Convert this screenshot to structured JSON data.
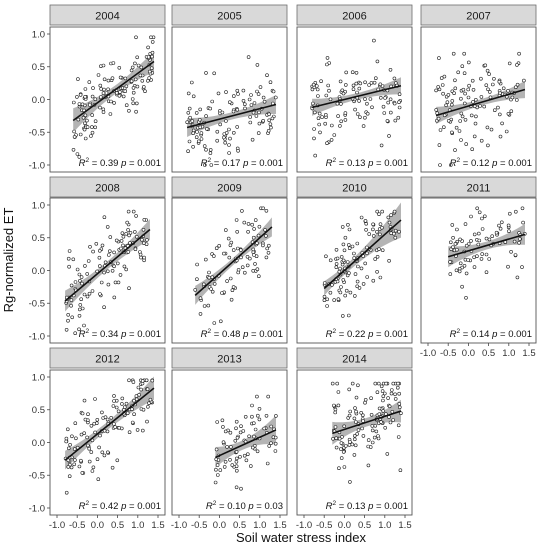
{
  "chart_data": {
    "type": "scatter",
    "xlabel": "Soil water stress index",
    "ylabel": "Rg-normalized ET",
    "xlim": [
      -1.0,
      1.5
    ],
    "ylim": [
      -1.0,
      1.0
    ],
    "x_ticks": [
      "-1.0",
      "-0.5",
      "0.0",
      "0.5",
      "1.0",
      "1.5"
    ],
    "y_ticks": [
      "-1.0",
      "-0.5",
      "0.0",
      "0.5",
      "1.0"
    ],
    "grid": false,
    "colors": {
      "strip": "#d9d9d9",
      "band": "#9b9b9b",
      "line": "#111111",
      "point_edge": "#222222"
    },
    "panels": [
      {
        "year": "2004",
        "r2": "0.39",
        "p": "0.001",
        "x_range": [
          -0.6,
          1.4
        ],
        "y_range": [
          -1.0,
          0.95
        ],
        "slope": 0.45,
        "intercept": -0.05,
        "band": 0.12,
        "cx": 0.45,
        "cy": 0.32,
        "n": 140,
        "spread": 0.25
      },
      {
        "year": "2005",
        "r2": "0.17",
        "p": "0.001",
        "x_range": [
          -0.8,
          1.4
        ],
        "y_range": [
          -1.0,
          0.7
        ],
        "slope": 0.16,
        "intercept": -0.3,
        "band": 0.1,
        "cx": 0.3,
        "cy": 0.35,
        "n": 120,
        "spread": 0.28
      },
      {
        "year": "2006",
        "r2": "0.13",
        "p": "0.001",
        "x_range": [
          -0.8,
          1.4
        ],
        "y_range": [
          -0.9,
          0.9
        ],
        "slope": 0.15,
        "intercept": 0.0,
        "band": 0.09,
        "cx": 0.3,
        "cy": 0.35,
        "n": 120,
        "spread": 0.33
      },
      {
        "year": "2007",
        "r2": "0.12",
        "p": "0.001",
        "x_range": [
          -0.8,
          1.4
        ],
        "y_range": [
          -1.0,
          0.7
        ],
        "slope": 0.18,
        "intercept": -0.1,
        "band": 0.09,
        "cx": 0.3,
        "cy": 0.35,
        "n": 120,
        "spread": 0.38
      },
      {
        "year": "2008",
        "r2": "0.34",
        "p": "0.001",
        "x_range": [
          -0.8,
          1.3
        ],
        "y_range": [
          -1.0,
          0.9
        ],
        "slope": 0.52,
        "intercept": -0.05,
        "band": 0.11,
        "cx": 0.25,
        "cy": 0.35,
        "n": 120,
        "spread": 0.28
      },
      {
        "year": "2009",
        "r2": "0.48",
        "p": "0.001",
        "x_range": [
          -0.6,
          1.3
        ],
        "y_range": [
          -1.0,
          0.95
        ],
        "slope": 0.55,
        "intercept": -0.05,
        "band": 0.1,
        "cx": 0.35,
        "cy": 0.35,
        "n": 95,
        "spread": 0.3
      },
      {
        "year": "2010",
        "r2": "0.22",
        "p": "0.001",
        "x_range": [
          -0.5,
          1.4
        ],
        "y_range": [
          -1.0,
          0.9
        ],
        "slope": 0.55,
        "intercept": 0.0,
        "band": 0.12,
        "cx": 0.1,
        "cy": 0.35,
        "n": 120,
        "spread": 0.3
      },
      {
        "year": "2011",
        "r2": "0.14",
        "p": "0.001",
        "x_range": [
          -0.5,
          1.4
        ],
        "y_range": [
          -0.6,
          0.95
        ],
        "slope": 0.18,
        "intercept": 0.3,
        "band": 0.11,
        "cx": 0.45,
        "cy": 0.3,
        "n": 90,
        "spread": 0.28
      },
      {
        "year": "2012",
        "r2": "0.42",
        "p": "0.001",
        "x_range": [
          -0.8,
          1.4
        ],
        "y_range": [
          -1.0,
          0.95
        ],
        "slope": 0.5,
        "intercept": 0.13,
        "band": 0.11,
        "cx": 0.2,
        "cy": 0.35,
        "n": 130,
        "spread": 0.28
      },
      {
        "year": "2013",
        "r2": "0.10",
        "p": "0.03",
        "x_range": [
          -0.1,
          1.4
        ],
        "y_range": [
          -0.8,
          0.7
        ],
        "slope": 0.28,
        "intercept": -0.2,
        "band": 0.13,
        "cx": 0.55,
        "cy": 0.35,
        "n": 80,
        "spread": 0.28
      },
      {
        "year": "2014",
        "r2": "0.13",
        "p": "0.001",
        "x_range": [
          -0.3,
          1.4
        ],
        "y_range": [
          -1.0,
          0.9
        ],
        "slope": 0.2,
        "intercept": 0.2,
        "band": 0.12,
        "cx": 0.55,
        "cy": 0.35,
        "n": 130,
        "spread": 0.35
      }
    ]
  }
}
